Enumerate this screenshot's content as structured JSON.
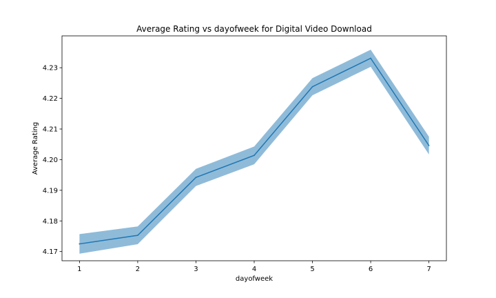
{
  "chart_data": {
    "type": "line",
    "title": "Average Rating vs dayofweek for Digital Video Download",
    "xlabel": "dayofweek",
    "ylabel": "Average Rating",
    "x": [
      1,
      2,
      3,
      4,
      5,
      6,
      7
    ],
    "series": [
      {
        "values": [
          4.1725,
          4.1753,
          4.1942,
          4.2014,
          4.2238,
          4.2331,
          4.2046
        ],
        "lower": [
          4.1693,
          4.1724,
          4.1914,
          4.1985,
          4.221,
          4.2303,
          4.2017
        ],
        "upper": [
          4.1757,
          4.1782,
          4.197,
          4.2043,
          4.2266,
          4.2359,
          4.2075
        ]
      }
    ],
    "xticks": [
      "1",
      "2",
      "3",
      "4",
      "5",
      "6",
      "7"
    ],
    "yticks": [
      "4.17",
      "4.18",
      "4.19",
      "4.20",
      "4.21",
      "4.22",
      "4.23"
    ],
    "xlim": [
      0.7,
      7.3
    ],
    "ylim": [
      4.167,
      4.2404
    ],
    "grid": false,
    "colors": {
      "line": "#1f77b4",
      "band": "#1f77b4",
      "band_opacity": 0.5
    }
  }
}
